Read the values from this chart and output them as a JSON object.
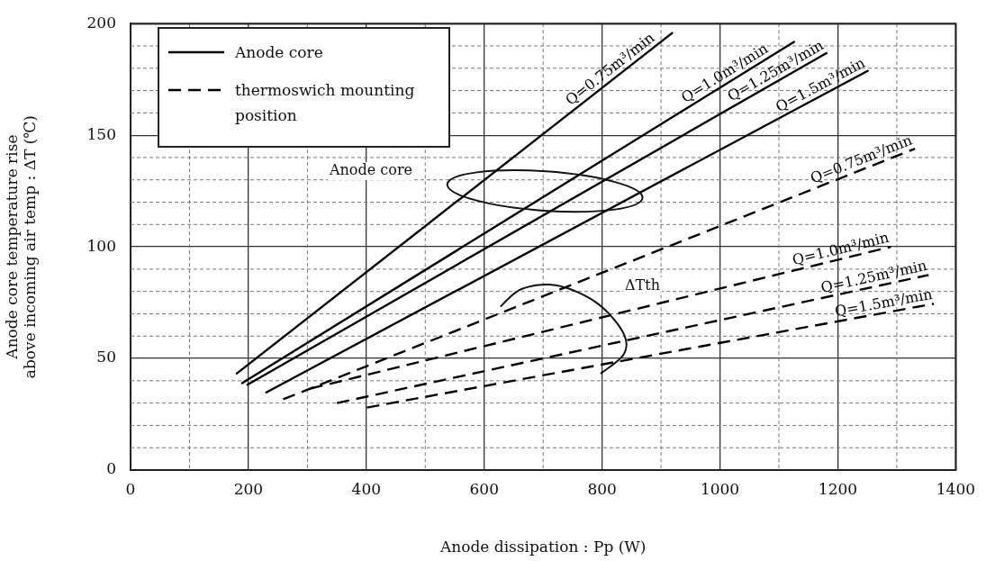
{
  "chart_data": {
    "type": "line",
    "xlabel": "Anode dissipation : Pp (W)",
    "ylabel": "Anode core temperature rise\nabove incoming air temp : ΔT (℃)",
    "xlim": [
      0,
      1400
    ],
    "xticks": [
      0,
      200,
      400,
      600,
      800,
      1000,
      1200,
      1400
    ],
    "ylim": [
      0,
      200
    ],
    "yticks": [
      0,
      50,
      100,
      150,
      200
    ],
    "grid": true,
    "marker": "none",
    "series": [
      {
        "name": "Q=0.75m³/min",
        "color": "#000000",
        "line_style": "solid",
        "x": [
          179,
          920
        ],
        "values": [
          43,
          196
        ]
      },
      {
        "name": "Q=1.0m³/min",
        "color": "#000000",
        "line_style": "solid",
        "x": [
          188,
          1127
        ],
        "values": [
          38.7,
          192
        ]
      },
      {
        "name": "Q=1.25m³/min",
        "color": "#000000",
        "line_style": "solid",
        "x": [
          197,
          1182
        ],
        "values": [
          38,
          187
        ]
      },
      {
        "name": "Q=1.5m³/min",
        "color": "#000000",
        "line_style": "solid",
        "x": [
          229,
          1252
        ],
        "values": [
          34.6,
          179
        ]
      },
      {
        "name": "Q=0.75m³/min",
        "color": "#000000",
        "line_style": "dashed",
        "x": [
          259,
          1331
        ],
        "values": [
          31.7,
          144
        ]
      },
      {
        "name": "Q=1.0m³/min",
        "color": "#000000",
        "line_style": "dashed",
        "x": [
          305,
          1290
        ],
        "values": [
          36.5,
          100
        ]
      },
      {
        "name": "Q=1.25m³/min",
        "color": "#000000",
        "line_style": "dashed",
        "x": [
          350,
          1354
        ],
        "values": [
          30,
          87.4
        ]
      },
      {
        "name": "Q=1.5m³/min",
        "color": "#000000",
        "line_style": "dashed",
        "x": [
          401,
          1363
        ],
        "values": [
          28,
          74.5
        ]
      }
    ],
    "annotations": [
      "Anode core",
      "thermoswich mounting position",
      "Anode core",
      "ΔTth"
    ]
  }
}
